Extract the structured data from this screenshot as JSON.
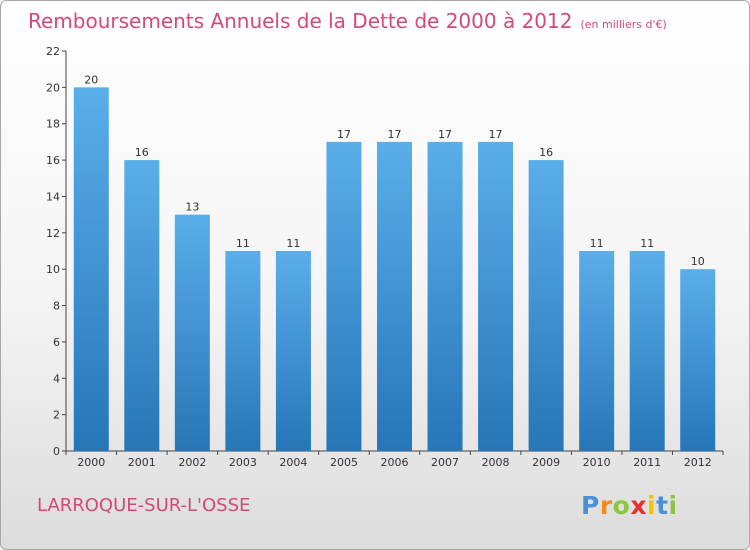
{
  "title": "Remboursements Annuels de la Dette de 2000 à 2012",
  "unit_note": "(en milliers d'€)",
  "commune": "LARROQUE-SUR-L'OSSE",
  "logo": {
    "letters": [
      "P",
      "r",
      "o",
      "x",
      "i",
      "t",
      "i"
    ],
    "colors": [
      "#4a90d9",
      "#f08a1c",
      "#8cc63f",
      "#e8312f",
      "#f3c300",
      "#4a90d9",
      "#8cc63f"
    ]
  },
  "colors": {
    "bar_light": "#5aaee9",
    "bar_dark": "#2676b8",
    "title": "#d2497a"
  },
  "chart_data": {
    "type": "bar",
    "title": "Remboursements Annuels de la Dette de 2000 à 2012",
    "categories": [
      "2000",
      "2001",
      "2002",
      "2003",
      "2004",
      "2005",
      "2006",
      "2007",
      "2008",
      "2009",
      "2010",
      "2011",
      "2012"
    ],
    "values": [
      20,
      16,
      13,
      11,
      11,
      17,
      17,
      17,
      17,
      16,
      11,
      11,
      10
    ],
    "ylim": [
      0,
      22
    ],
    "yticks": [
      0,
      2,
      4,
      6,
      8,
      10,
      12,
      14,
      16,
      18,
      20,
      22
    ],
    "grid": false,
    "legend": "none"
  }
}
